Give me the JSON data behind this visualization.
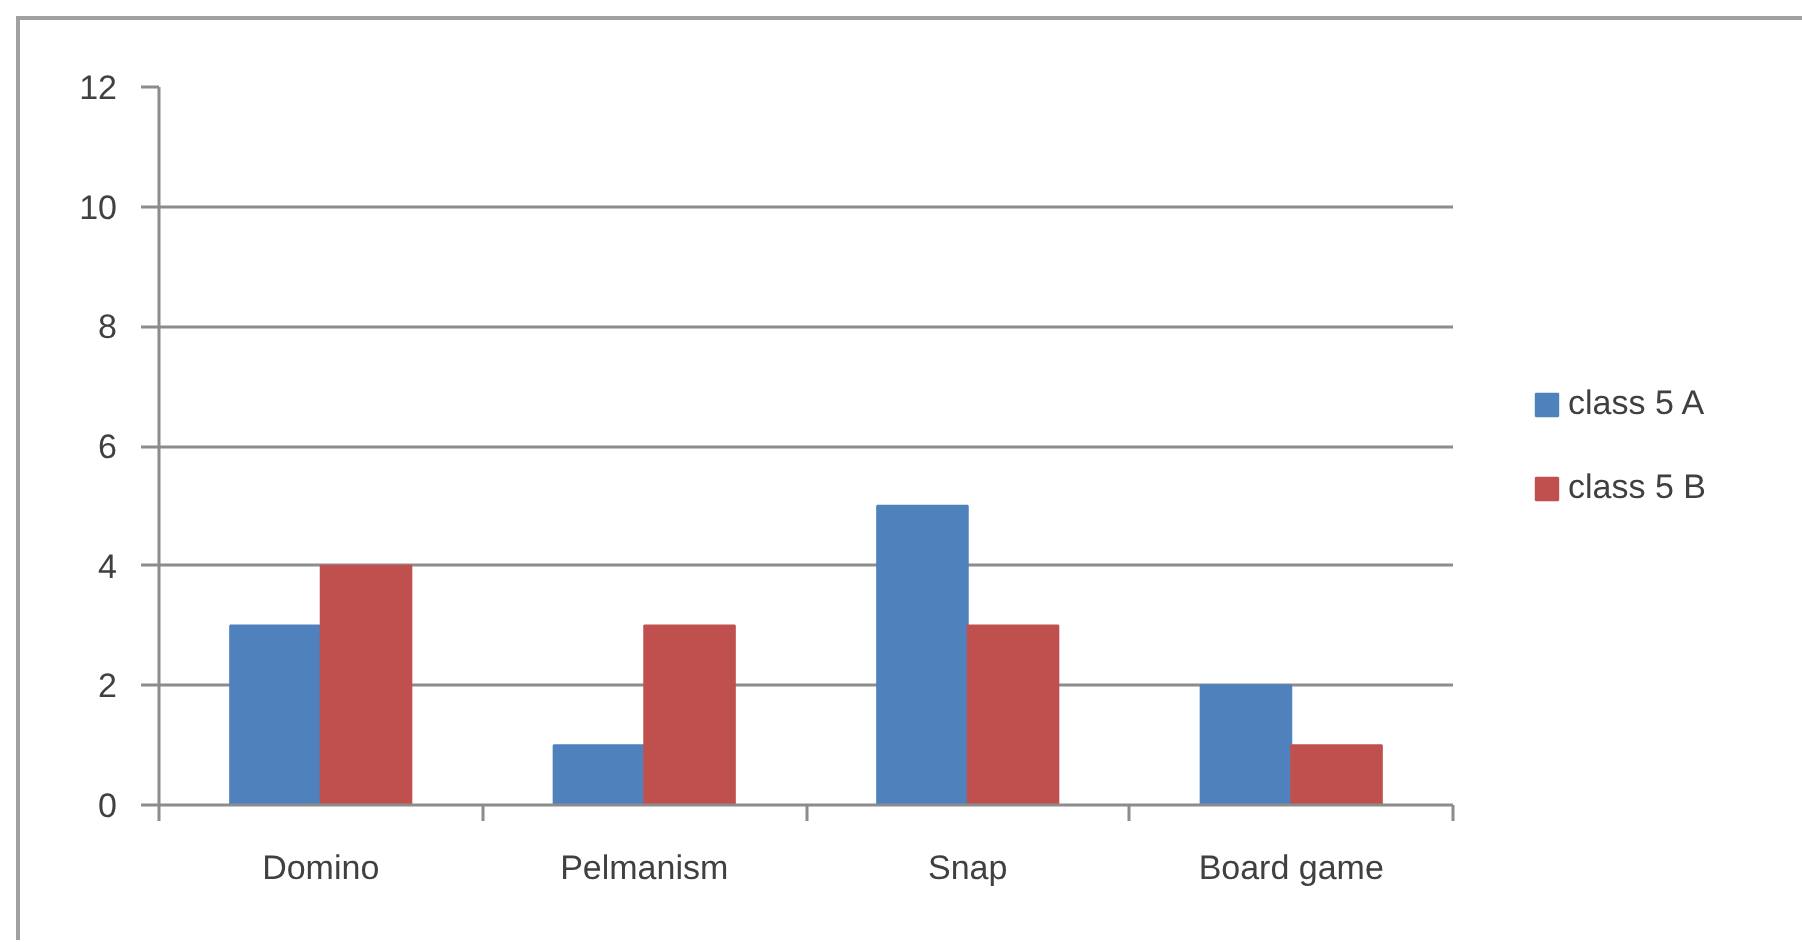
{
  "chart_data": {
    "type": "bar",
    "categories": [
      "Domino",
      "Pelmanism",
      "Snap",
      "Board game"
    ],
    "series": [
      {
        "name": "class 5 A",
        "color": "#4f81bd",
        "values": [
          3,
          1,
          5,
          2
        ]
      },
      {
        "name": "class 5 B",
        "color": "#c0504d",
        "values": [
          4,
          3,
          3,
          1
        ]
      }
    ],
    "ylim": [
      0,
      12
    ],
    "yticks": [
      0,
      2,
      4,
      6,
      8,
      10,
      12
    ],
    "grid": "y",
    "legend": "right"
  }
}
